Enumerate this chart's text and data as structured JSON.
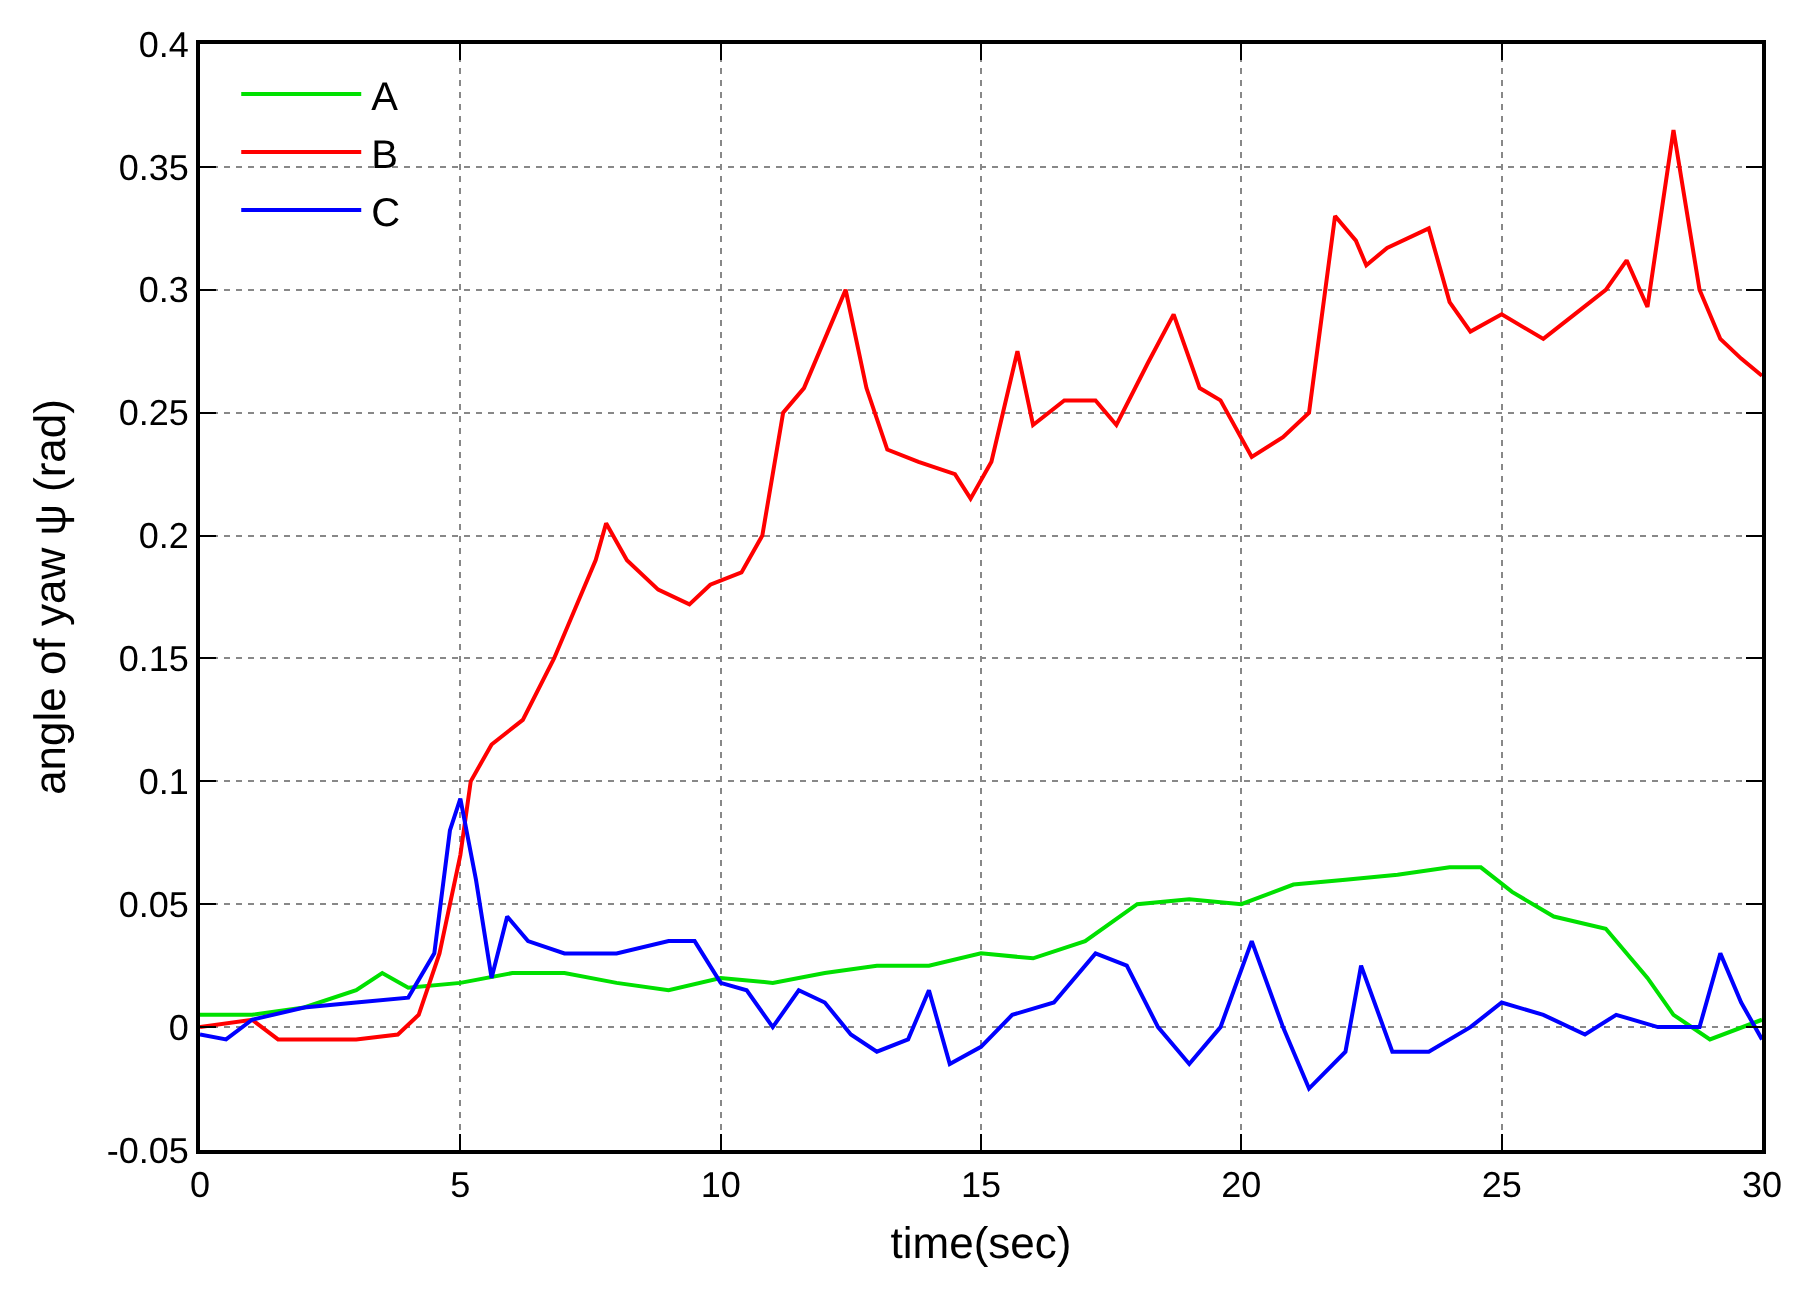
{
  "chart_data": {
    "type": "line",
    "xlabel": "time(sec)",
    "ylabel": "angle of yaw ψ (rad)",
    "xlim": [
      0,
      30
    ],
    "xticks": [
      0,
      5,
      10,
      15,
      20,
      25,
      30
    ],
    "ylim": [
      -0.05,
      0.4
    ],
    "yticks": [
      -0.05,
      0,
      0.05,
      0.1,
      0.15,
      0.2,
      0.25,
      0.3,
      0.35,
      0.4
    ],
    "grid": true,
    "legend": "top left",
    "marker": "none",
    "line_style": "solid",
    "series": [
      {
        "name": "A",
        "color": "#00e000",
        "x": [
          0,
          1,
          2,
          3,
          3.5,
          4,
          5,
          6,
          7,
          8,
          9,
          10,
          11,
          12,
          13,
          14,
          15,
          16,
          17,
          18,
          19,
          20,
          21,
          22,
          23,
          24,
          24.6,
          25.2,
          26,
          27,
          27.8,
          28.3,
          29,
          30
        ],
        "values": [
          0.005,
          0.005,
          0.008,
          0.015,
          0.022,
          0.016,
          0.018,
          0.022,
          0.022,
          0.018,
          0.015,
          0.02,
          0.018,
          0.022,
          0.025,
          0.025,
          0.03,
          0.028,
          0.035,
          0.05,
          0.052,
          0.05,
          0.058,
          0.06,
          0.062,
          0.065,
          0.065,
          0.055,
          0.045,
          0.04,
          0.02,
          0.005,
          -0.005,
          0.003
        ]
      },
      {
        "name": "B",
        "color": "#ff0000",
        "x": [
          0,
          1,
          1.5,
          2,
          3,
          3.8,
          4.2,
          4.6,
          5,
          5.2,
          5.6,
          6.2,
          6.8,
          7.2,
          7.6,
          7.8,
          8.2,
          8.8,
          9.4,
          9.8,
          10.4,
          10.8,
          11.2,
          11.6,
          12.2,
          12.4,
          12.8,
          13.2,
          13.8,
          14.5,
          14.8,
          15.2,
          15.7,
          16,
          16.6,
          17.2,
          17.6,
          18.2,
          18.7,
          19.2,
          19.6,
          20.2,
          20.8,
          21.3,
          21.8,
          22.2,
          22.4,
          22.8,
          23.6,
          24,
          24.4,
          25,
          25.8,
          26.4,
          27,
          27.4,
          27.8,
          28.3,
          28.8,
          29.2,
          29.6,
          30
        ],
        "values": [
          0,
          0.003,
          -0.005,
          -0.005,
          -0.005,
          -0.003,
          0.005,
          0.03,
          0.07,
          0.1,
          0.115,
          0.125,
          0.15,
          0.17,
          0.19,
          0.205,
          0.19,
          0.178,
          0.172,
          0.18,
          0.185,
          0.2,
          0.25,
          0.26,
          0.29,
          0.3,
          0.26,
          0.235,
          0.23,
          0.225,
          0.215,
          0.23,
          0.275,
          0.245,
          0.255,
          0.255,
          0.245,
          0.27,
          0.29,
          0.26,
          0.255,
          0.232,
          0.24,
          0.25,
          0.33,
          0.32,
          0.31,
          0.317,
          0.325,
          0.295,
          0.283,
          0.29,
          0.28,
          0.29,
          0.3,
          0.312,
          0.293,
          0.365,
          0.3,
          0.28,
          0.272,
          0.265
        ]
      },
      {
        "name": "C",
        "color": "#0000ff",
        "x": [
          0,
          0.5,
          1,
          2,
          3,
          4,
          4.5,
          4.8,
          5,
          5.3,
          5.6,
          5.9,
          6.3,
          7,
          8,
          9,
          9.5,
          10,
          10.5,
          11,
          11.5,
          12,
          12.5,
          13,
          13.6,
          14,
          14.4,
          15,
          15.6,
          16.4,
          17.2,
          17.8,
          18.4,
          19,
          19.6,
          20.2,
          20.8,
          21.3,
          22,
          22.3,
          22.9,
          23.6,
          24.4,
          25,
          25.8,
          26.6,
          27.2,
          28,
          28.8,
          29.2,
          29.6,
          30
        ],
        "values": [
          -0.003,
          -0.005,
          0.003,
          0.008,
          0.01,
          0.012,
          0.03,
          0.08,
          0.093,
          0.06,
          0.02,
          0.045,
          0.035,
          0.03,
          0.03,
          0.035,
          0.035,
          0.018,
          0.015,
          0,
          0.015,
          0.01,
          -0.003,
          -0.01,
          -0.005,
          0.015,
          -0.015,
          -0.008,
          0.005,
          0.01,
          0.03,
          0.025,
          0,
          -0.015,
          0,
          0.035,
          0,
          -0.025,
          -0.01,
          0.025,
          -0.01,
          -0.01,
          0,
          0.01,
          0.005,
          -0.003,
          0.005,
          0,
          0,
          0.03,
          0.01,
          -0.005
        ]
      }
    ]
  }
}
